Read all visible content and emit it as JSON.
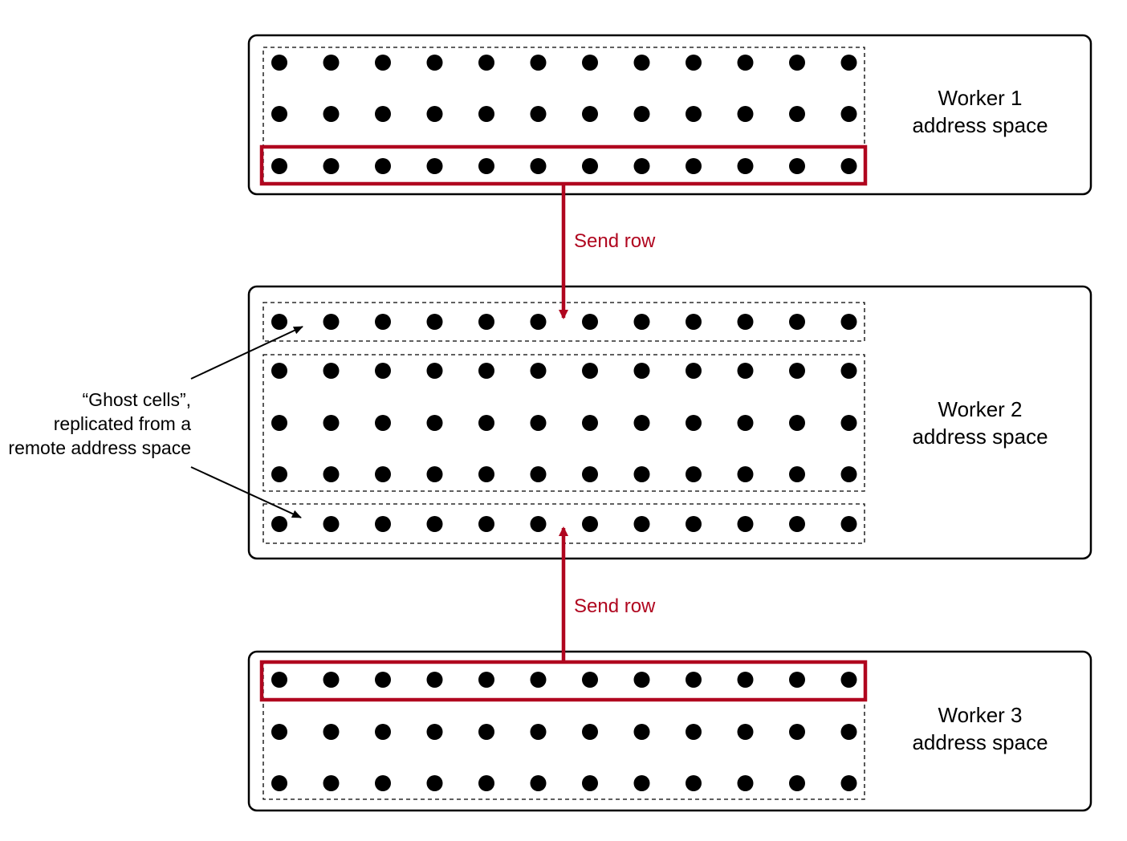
{
  "colors": {
    "accent": "#b0061f",
    "ink": "#000000",
    "background": "#ffffff"
  },
  "columns": 12,
  "workers": [
    {
      "id": "w1",
      "label_line1": "Worker 1",
      "label_line2": "address space",
      "groups": [
        {
          "kind": "owned",
          "rows": 3,
          "highlight_last_row": true
        }
      ]
    },
    {
      "id": "w2",
      "label_line1": "Worker 2",
      "label_line2": "address space",
      "groups": [
        {
          "kind": "ghost",
          "rows": 1
        },
        {
          "kind": "owned",
          "rows": 3
        },
        {
          "kind": "ghost",
          "rows": 1
        }
      ]
    },
    {
      "id": "w3",
      "label_line1": "Worker 3",
      "label_line2": "address space",
      "groups": [
        {
          "kind": "owned",
          "rows": 3,
          "highlight_first_row": true
        }
      ]
    }
  ],
  "arrows": [
    {
      "id": "send-down",
      "label": "Send row",
      "direction": "down"
    },
    {
      "id": "send-up",
      "label": "Send row",
      "direction": "up"
    }
  ],
  "annotation": {
    "line1": "“Ghost cells”,",
    "line2": "replicated from a",
    "line3": "remote address space"
  }
}
